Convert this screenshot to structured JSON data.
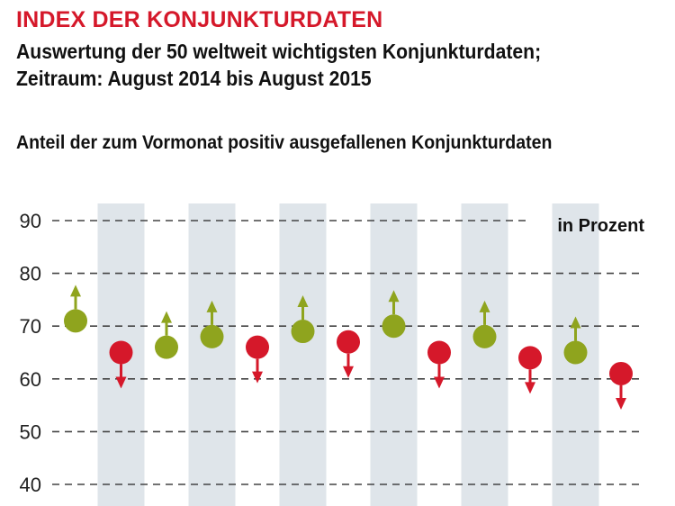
{
  "header": {
    "title": "INDEX DER KONJUNKTURDATEN",
    "subtitle_line1": "Auswertung der 50 weltweit wichtigsten Konjunkturdaten;",
    "subtitle_line2": "Zeitraum: August 2014 bis August 2015",
    "chart_heading": "Anteil der zum Vormonat positiv ausgefallenen Konjunkturdaten"
  },
  "colors": {
    "up": "#8fa41e",
    "down": "#d5182a",
    "band": "#dfe5ea",
    "grid": "#444444"
  },
  "chart_data": {
    "type": "scatter",
    "unit_label": "in Prozent",
    "ylim": [
      40,
      90
    ],
    "yticks": [
      90,
      80,
      70,
      60,
      50,
      40
    ],
    "grid": "dashed horizontal",
    "values": [
      71,
      65,
      66,
      68,
      66,
      69,
      67,
      70,
      65,
      68,
      64,
      65,
      61
    ],
    "direction": [
      "up",
      "down",
      "up",
      "up",
      "down",
      "up",
      "down",
      "up",
      "down",
      "up",
      "down",
      "up",
      "down"
    ]
  }
}
